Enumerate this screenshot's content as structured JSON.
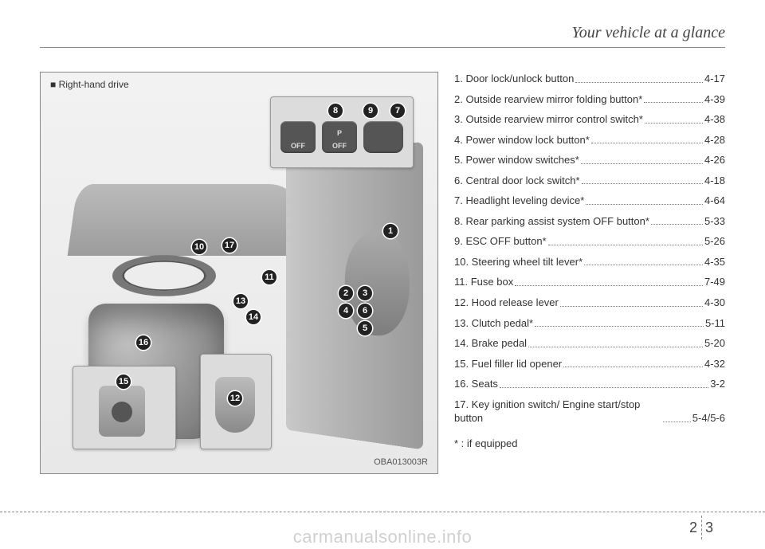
{
  "header": {
    "title": "Your vehicle at a glance"
  },
  "figure": {
    "caption_prefix": "■",
    "caption": "Right-hand drive",
    "code": "OBA013003R",
    "top_inset": {
      "labels": {
        "esc": "OFF",
        "p": "P",
        "p_off": "OFF"
      }
    },
    "numbers": [
      "1",
      "2",
      "3",
      "4",
      "5",
      "6",
      "7",
      "8",
      "9",
      "10",
      "11",
      "12",
      "13",
      "14",
      "15",
      "16",
      "17"
    ]
  },
  "list": [
    {
      "label": "1. Door lock/unlock button",
      "page": "4-17"
    },
    {
      "label": "2. Outside rearview mirror folding button*",
      "page": "4-39"
    },
    {
      "label": "3. Outside rearview mirror control switch*",
      "page": "4-38"
    },
    {
      "label": "4. Power window lock button*",
      "page": "4-28"
    },
    {
      "label": "5. Power window switches*",
      "page": "4-26"
    },
    {
      "label": "6. Central door lock switch*",
      "page": "4-18"
    },
    {
      "label": "7. Headlight leveling device*",
      "page": "4-64"
    },
    {
      "label": "8. Rear parking assist system OFF button*",
      "page": "5-33"
    },
    {
      "label": "9. ESC OFF button*",
      "page": "5-26"
    },
    {
      "label": "10. Steering wheel tilt lever*",
      "page": "4-35"
    },
    {
      "label": "11. Fuse box",
      "page": "7-49"
    },
    {
      "label": "12. Hood release lever",
      "page": "4-30"
    },
    {
      "label": "13. Clutch pedal*",
      "page": "5-11"
    },
    {
      "label": "14. Brake pedal",
      "page": "5-20"
    },
    {
      "label": "15. Fuel filler lid opener",
      "page": "4-32"
    },
    {
      "label": "16. Seats",
      "page": "3-2"
    },
    {
      "label": "17. Key ignition switch/ Engine start/stop button",
      "page": "5-4/5-6"
    }
  ],
  "footnote": "* : if equipped",
  "footer": {
    "chapter": "2",
    "page": "3"
  },
  "watermark": "carmanualsonline.info"
}
